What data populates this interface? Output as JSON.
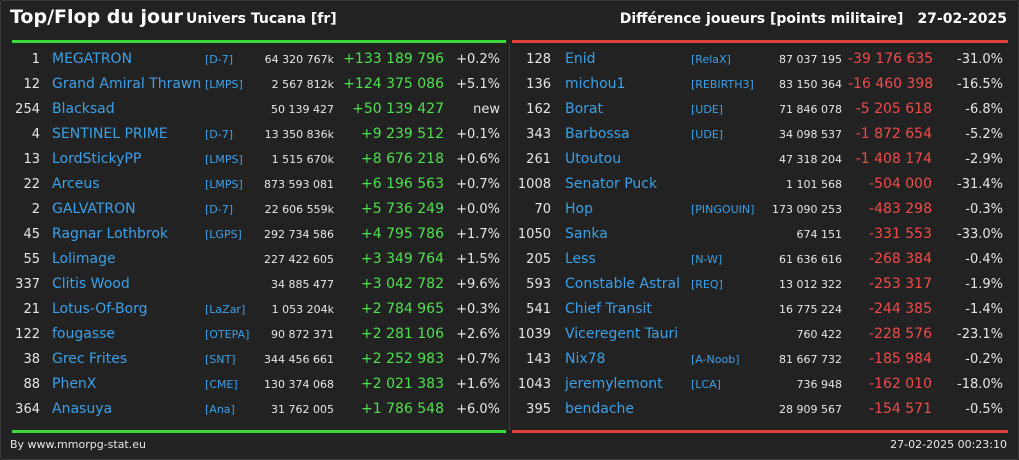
{
  "header": {
    "title": "Top/Flop du jour",
    "subtitle": "Univers Tucana [fr]",
    "metric": "Différence joueurs [points militaire]",
    "date": "27-02-2025"
  },
  "colors": {
    "gain": "#4ee04e",
    "loss": "#f04b4b",
    "link": "#3aa0e8",
    "top_rule": "#3dd93d",
    "flop_rule": "#e0413a"
  },
  "top": [
    {
      "rank": "1",
      "name": "MEGATRON",
      "alliance": "[D-7]",
      "points": "64 320 767k",
      "diff": "+133 189 796",
      "pct": "+0.2%"
    },
    {
      "rank": "12",
      "name": "Grand Amiral Thrawn",
      "alliance": "[LMPS]",
      "points": "2 567 812k",
      "diff": "+124 375 086",
      "pct": "+5.1%"
    },
    {
      "rank": "254",
      "name": "Blacksad",
      "alliance": "",
      "points": "50 139 427",
      "diff": "+50 139 427",
      "pct": "new"
    },
    {
      "rank": "4",
      "name": "SENTINEL PRIME",
      "alliance": "[D-7]",
      "points": "13 350 836k",
      "diff": "+9 239 512",
      "pct": "+0.1%"
    },
    {
      "rank": "13",
      "name": "LordStickyPP",
      "alliance": "[LMPS]",
      "points": "1 515 670k",
      "diff": "+8 676 218",
      "pct": "+0.6%"
    },
    {
      "rank": "22",
      "name": "Arceus",
      "alliance": "[LMPS]",
      "points": "873 593 081",
      "diff": "+6 196 563",
      "pct": "+0.7%"
    },
    {
      "rank": "2",
      "name": "GALVATRON",
      "alliance": "[D-7]",
      "points": "22 606 559k",
      "diff": "+5 736 249",
      "pct": "+0.0%"
    },
    {
      "rank": "45",
      "name": "Ragnar Lothbrok",
      "alliance": "[LGPS]",
      "points": "292 734 586",
      "diff": "+4 795 786",
      "pct": "+1.7%"
    },
    {
      "rank": "55",
      "name": "Lolimage",
      "alliance": "",
      "points": "227 422 605",
      "diff": "+3 349 764",
      "pct": "+1.5%"
    },
    {
      "rank": "337",
      "name": "Clitis Wood",
      "alliance": "",
      "points": "34 885 477",
      "diff": "+3 042 782",
      "pct": "+9.6%"
    },
    {
      "rank": "21",
      "name": "Lotus-Of-Borg",
      "alliance": "[LaZar]",
      "points": "1 053 204k",
      "diff": "+2 784 965",
      "pct": "+0.3%"
    },
    {
      "rank": "122",
      "name": "fougasse",
      "alliance": "[OTEPA]",
      "points": "90 872 371",
      "diff": "+2 281 106",
      "pct": "+2.6%"
    },
    {
      "rank": "38",
      "name": "Grec Frites",
      "alliance": "[SNT]",
      "points": "344 456 661",
      "diff": "+2 252 983",
      "pct": "+0.7%"
    },
    {
      "rank": "88",
      "name": "PhenX",
      "alliance": "[CME]",
      "points": "130 374 068",
      "diff": "+2 021 383",
      "pct": "+1.6%"
    },
    {
      "rank": "364",
      "name": "Anasuya",
      "alliance": "[Ana]",
      "points": "31 762 005",
      "diff": "+1 786 548",
      "pct": "+6.0%"
    }
  ],
  "flop": [
    {
      "rank": "128",
      "name": "Enid",
      "alliance": "[RelaX]",
      "points": "87 037 195",
      "diff": "-39 176 635",
      "pct": "-31.0%"
    },
    {
      "rank": "136",
      "name": "michou1",
      "alliance": "[REBIRTH3]",
      "points": "83 150 364",
      "diff": "-16 460 398",
      "pct": "-16.5%"
    },
    {
      "rank": "162",
      "name": "Borat",
      "alliance": "[UDE]",
      "points": "71 846 078",
      "diff": "-5 205 618",
      "pct": "-6.8%"
    },
    {
      "rank": "343",
      "name": "Barbossa",
      "alliance": "[UDE]",
      "points": "34 098 537",
      "diff": "-1 872 654",
      "pct": "-5.2%"
    },
    {
      "rank": "261",
      "name": "Utoutou",
      "alliance": "",
      "points": "47 318 204",
      "diff": "-1 408 174",
      "pct": "-2.9%"
    },
    {
      "rank": "1008",
      "name": "Senator Puck",
      "alliance": "",
      "points": "1 101 568",
      "diff": "-504 000",
      "pct": "-31.4%"
    },
    {
      "rank": "70",
      "name": "Hop",
      "alliance": "[PINGOUIN]",
      "points": "173 090 253",
      "diff": "-483 298",
      "pct": "-0.3%"
    },
    {
      "rank": "1050",
      "name": "Sanka",
      "alliance": "",
      "points": "674 151",
      "diff": "-331 553",
      "pct": "-33.0%"
    },
    {
      "rank": "205",
      "name": "Less",
      "alliance": "[N-W]",
      "points": "61 636 616",
      "diff": "-268 384",
      "pct": "-0.4%"
    },
    {
      "rank": "593",
      "name": "Constable Astral",
      "alliance": "[REQ]",
      "points": "13 012 322",
      "diff": "-253 317",
      "pct": "-1.9%"
    },
    {
      "rank": "541",
      "name": "Chief Transit",
      "alliance": "",
      "points": "16 775 224",
      "diff": "-244 385",
      "pct": "-1.4%"
    },
    {
      "rank": "1039",
      "name": "Viceregent Tauri",
      "alliance": "",
      "points": "760 422",
      "diff": "-228 576",
      "pct": "-23.1%"
    },
    {
      "rank": "143",
      "name": "Nix78",
      "alliance": "[A-Noob]",
      "points": "81 667 732",
      "diff": "-185 984",
      "pct": "-0.2%"
    },
    {
      "rank": "1043",
      "name": "jeremylemont",
      "alliance": "[LCA]",
      "points": "736 948",
      "diff": "-162 010",
      "pct": "-18.0%"
    },
    {
      "rank": "395",
      "name": "bendache",
      "alliance": "",
      "points": "28 909 567",
      "diff": "-154 571",
      "pct": "-0.5%"
    }
  ],
  "footer": {
    "credit": "By www.mmorpg-stat.eu",
    "timestamp": "27-02-2025 00:23:10"
  }
}
